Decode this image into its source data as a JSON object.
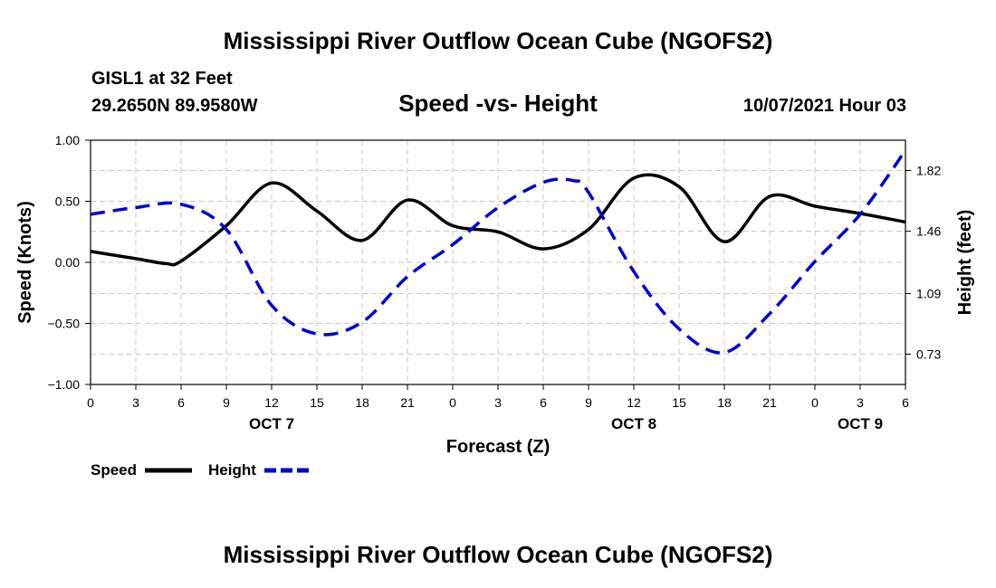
{
  "header": {
    "title": "Mississippi River Outflow Ocean Cube (NGOFS2)",
    "station": "GISL1 at 32 Feet",
    "coords": "29.2650N  89.9580W",
    "subtitle": "Speed -vs- Height",
    "datetime": "10/07/2021 Hour 03"
  },
  "footer": {
    "title": "Mississippi River Outflow Ocean Cube (NGOFS2)"
  },
  "colors": {
    "speed": "#000000",
    "height": "#0000cc",
    "grid": "#c8c8c8"
  },
  "chart_data": {
    "type": "line",
    "xlabel": "Forecast (Z)",
    "ylabel": "Speed (Knots)",
    "y2label": "Height (feet)",
    "xlim": [
      0,
      54
    ],
    "ylim": [
      -1.0,
      1.0
    ],
    "y2lim": [
      0.55,
      2.0
    ],
    "grid": true,
    "x_tick_labels": [
      "0",
      "3",
      "6",
      "9",
      "12",
      "15",
      "18",
      "21",
      "0",
      "3",
      "6",
      "9",
      "12",
      "15",
      "18",
      "21",
      "0",
      "3",
      "6"
    ],
    "y_ticks": [
      "1.00",
      "0.50",
      "0.00",
      "-0.50",
      "-1.00"
    ],
    "y2_ticks": [
      "1.82",
      "1.46",
      "1.09",
      "0.73"
    ],
    "day_labels": [
      {
        "label": "OCT 7",
        "hour": 12
      },
      {
        "label": "OCT 8",
        "hour": 36
      },
      {
        "label": "OCT 9",
        "hour": 51
      }
    ],
    "legend": [
      "Speed",
      "Height"
    ],
    "series": [
      {
        "name": "Speed",
        "style": "solid",
        "axis": "left",
        "x": [
          0,
          3,
          5,
          6,
          9,
          12,
          15,
          18,
          21,
          24,
          27,
          30,
          33,
          36,
          39,
          42,
          45,
          48,
          51,
          54
        ],
        "y": [
          0.09,
          0.03,
          -0.01,
          0.01,
          0.3,
          0.65,
          0.42,
          0.18,
          0.51,
          0.3,
          0.25,
          0.11,
          0.27,
          0.69,
          0.62,
          0.17,
          0.54,
          0.46,
          0.4,
          0.33
        ]
      },
      {
        "name": "Height",
        "style": "dashed",
        "axis": "right",
        "x": [
          0,
          3,
          6,
          9,
          12,
          15,
          18,
          21,
          24,
          27,
          30,
          32,
          33,
          36,
          39,
          42,
          45,
          48,
          51,
          54
        ],
        "y": [
          1.56,
          1.6,
          1.62,
          1.47,
          1.02,
          0.85,
          0.92,
          1.19,
          1.38,
          1.6,
          1.75,
          1.76,
          1.69,
          1.22,
          0.88,
          0.74,
          0.97,
          1.28,
          1.56,
          1.94
        ]
      }
    ]
  }
}
